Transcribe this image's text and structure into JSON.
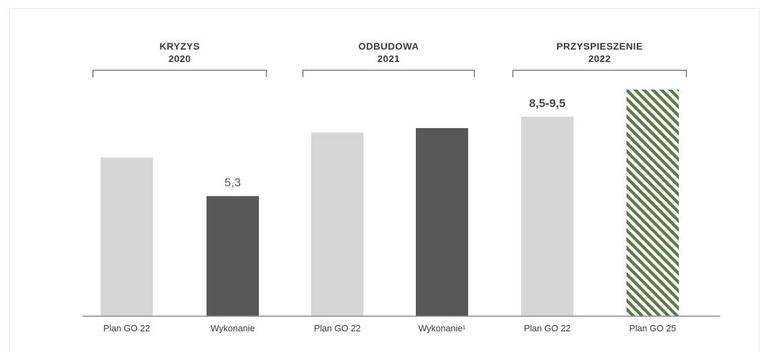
{
  "chart_data": {
    "type": "bar",
    "title": "",
    "xlabel": "",
    "ylabel": "",
    "ylim": [
      0,
      10
    ],
    "groups": [
      {
        "name": "KRYZYS",
        "year": "2020"
      },
      {
        "name": "ODBUDOWA",
        "year": "2021"
      },
      {
        "name": "PRZYSPIESZENIE",
        "year": "2022"
      }
    ],
    "categories": [
      "Plan GO 22",
      "Wykonanie",
      "Plan GO 22",
      "Wykonanie¹",
      "Plan GO 22",
      "Plan GO 25"
    ],
    "category_group": [
      0,
      0,
      1,
      1,
      2,
      2
    ],
    "values": [
      7.0,
      5.3,
      8.1,
      8.3,
      8.8,
      10.0
    ],
    "bar_styles": [
      "plan",
      "actual",
      "plan",
      "actual",
      "plan",
      "target"
    ],
    "data_labels": [
      "",
      "5,3",
      "",
      "",
      "8,5-9,5",
      ""
    ],
    "colors": {
      "plan": "#d6d6d6",
      "actual": "#585858",
      "target_stripe": "#5e7a48",
      "axis": "#8a8a8a",
      "bracket": "#7a7a7a"
    },
    "grid": false
  }
}
